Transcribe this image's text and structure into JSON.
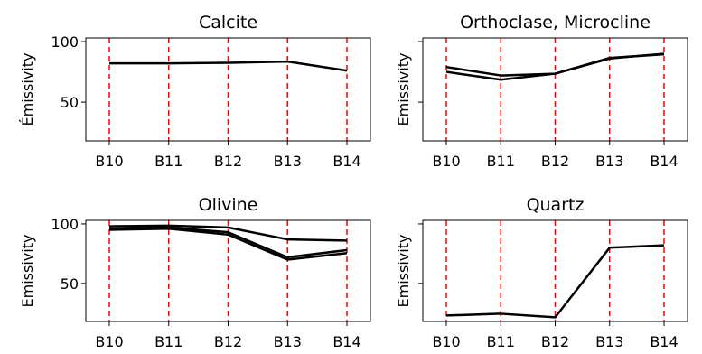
{
  "chart_data": [
    {
      "type": "line",
      "title": "Calcite",
      "categories": [
        "B10",
        "B11",
        "B12",
        "B13",
        "B14"
      ],
      "ylabel": "Émissivity",
      "yticks": [
        "100",
        "50"
      ],
      "ylim": [
        18,
        103
      ],
      "vlines": {
        "color": "#ff0000",
        "style": "dashed"
      },
      "series": [
        {
          "values": [
            82,
            82,
            82.5,
            83.5,
            76
          ]
        }
      ]
    },
    {
      "type": "line",
      "title": "Orthoclase, Microcline",
      "categories": [
        "B10",
        "B11",
        "B12",
        "B13",
        "B14"
      ],
      "ylabel": "Emissivity",
      "yticks": [],
      "ylim": [
        18,
        103
      ],
      "vlines": {
        "color": "#ff0000",
        "style": "dashed"
      },
      "series": [
        {
          "values": [
            79,
            72,
            73.5,
            86.5,
            89.5
          ]
        },
        {
          "values": [
            75,
            68.5,
            73.5,
            86,
            90
          ]
        }
      ]
    },
    {
      "type": "line",
      "title": "Olivine",
      "categories": [
        "B10",
        "B11",
        "B12",
        "B13",
        "B14"
      ],
      "ylabel": "Emissivity",
      "yticks": [
        "100",
        "50"
      ],
      "ylim": [
        18,
        103
      ],
      "vlines": {
        "color": "#ff0000",
        "style": "dashed"
      },
      "series": [
        {
          "values": [
            98,
            98.5,
            97,
            87,
            86
          ]
        },
        {
          "values": [
            96,
            97,
            93,
            72,
            78
          ]
        },
        {
          "values": [
            95,
            96,
            91,
            70,
            75.5
          ]
        }
      ]
    },
    {
      "type": "line",
      "title": "Quartz",
      "categories": [
        "B10",
        "B11",
        "B12",
        "B13",
        "B14"
      ],
      "ylabel": "Emissivity",
      "yticks": [],
      "ylim": [
        18,
        103
      ],
      "vlines": {
        "color": "#ff0000",
        "style": "dashed"
      },
      "series": [
        {
          "values": [
            23,
            24.5,
            21.5,
            80,
            82
          ]
        }
      ]
    }
  ]
}
